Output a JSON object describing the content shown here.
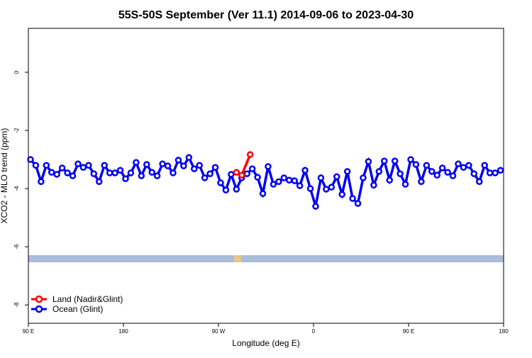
{
  "chart_data": {
    "type": "line",
    "title": "55S-50S September (Ver 11.1)   2014-09-06 to 2023-04-30",
    "xlabel": "Longitude (deg E)",
    "ylabel": "XCO2 - MLO trend (ppm)",
    "xlim": [
      90,
      540
    ],
    "xticks": [
      {
        "value": 90,
        "label": "90 E"
      },
      180,
      {
        "value": 270,
        "label": "90 W"
      },
      {
        "value": 360,
        "label": "0"
      },
      {
        "value": 450,
        "label": "90 E"
      },
      {
        "value": 540,
        "label": "180"
      }
    ],
    "ylim": [
      -8.63,
      1.51
    ],
    "yticks": [
      0,
      -2,
      -4,
      -6,
      -8
    ],
    "legend": "bottom-left",
    "series": [
      {
        "name": "Land (Nadir&Glint)",
        "color": "#ff0000",
        "x": [
          287,
          292,
          300
        ],
        "values": [
          -3.44,
          -3.54,
          -2.83
        ]
      },
      {
        "name": "Ocean (Glint)",
        "color": "#0000ee",
        "x": [
          92,
          97,
          102,
          107,
          112,
          117,
          122,
          127,
          132,
          137,
          142,
          147,
          152,
          157,
          162,
          167,
          172,
          177,
          182,
          187,
          192,
          197,
          202,
          207,
          212,
          217,
          222,
          227,
          232,
          237,
          242,
          247,
          252,
          257,
          262,
          267,
          272,
          277,
          282,
          287,
          292,
          297,
          302,
          307,
          312,
          317,
          322,
          327,
          332,
          337,
          342,
          347,
          352,
          357,
          362,
          367,
          372,
          377,
          382,
          387,
          392,
          397,
          402,
          407,
          412,
          417,
          422,
          427,
          432,
          437,
          442,
          447,
          452,
          457,
          462,
          467,
          472,
          477,
          482,
          487,
          492,
          497,
          502,
          507,
          512,
          517,
          522,
          527,
          532,
          537
        ],
        "values": [
          -3.0,
          -3.2,
          -3.76,
          -3.2,
          -3.44,
          -3.51,
          -3.29,
          -3.46,
          -3.56,
          -3.15,
          -3.27,
          -3.2,
          -3.49,
          -3.76,
          -3.2,
          -3.46,
          -3.46,
          -3.37,
          -3.66,
          -3.46,
          -3.1,
          -3.56,
          -3.17,
          -3.44,
          -3.56,
          -3.15,
          -3.22,
          -3.46,
          -3.02,
          -3.22,
          -2.93,
          -3.32,
          -3.2,
          -3.63,
          -3.49,
          -3.27,
          -3.8,
          -4.05,
          -3.51,
          -4.02,
          -3.63,
          -3.49,
          -3.32,
          -3.61,
          -4.17,
          -3.24,
          -3.85,
          -3.76,
          -3.63,
          -3.71,
          -3.73,
          -3.9,
          -3.37,
          -4.0,
          -4.61,
          -3.63,
          -4.02,
          -3.95,
          -3.59,
          -4.2,
          -3.41,
          -4.34,
          -4.51,
          -3.63,
          -3.07,
          -3.88,
          -3.41,
          -3.05,
          -3.71,
          -3.05,
          -3.49,
          -3.85,
          -3.0,
          -3.17,
          -3.76,
          -3.2,
          -3.41,
          -3.54,
          -3.29,
          -3.44,
          -3.56,
          -3.15,
          -3.27,
          -3.2,
          -3.49,
          -3.76,
          -3.2,
          -3.46,
          -3.46,
          -3.37
        ]
      }
    ]
  }
}
